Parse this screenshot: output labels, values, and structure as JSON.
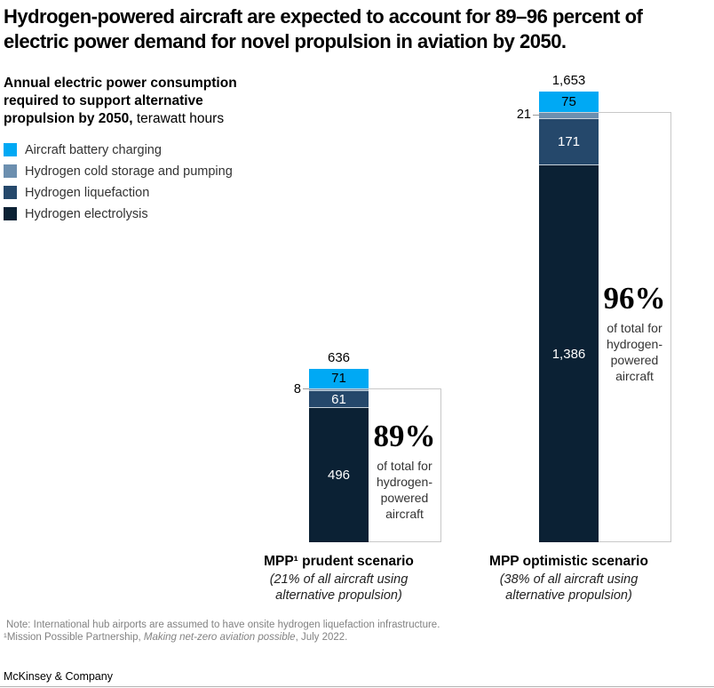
{
  "title_lines": [
    "Hydrogen-powered aircraft are expected to account for 89–96 percent of",
    "electric power demand for novel propulsion in aviation by 2050."
  ],
  "subtitle": {
    "bold": "Annual electric power consumption required to support alternative propulsion by 2050,",
    "unit": " terawatt hours"
  },
  "legend": [
    {
      "label": "Aircraft battery charging",
      "color": "#00A9F4"
    },
    {
      "label": "Hydrogen cold storage and pumping",
      "color": "#6C8FAF"
    },
    {
      "label": "Hydrogen liquefaction",
      "color": "#25486B"
    },
    {
      "label": "Hydrogen electrolysis",
      "color": "#0B2134"
    }
  ],
  "chart_data": {
    "type": "bar",
    "stacked": true,
    "unit": "terawatt hours",
    "baseline_value": 0,
    "categories": [
      {
        "name": "MPP¹ prudent scenario",
        "sub1": "(21% of all aircraft using",
        "sub2": "alternative propulsion)"
      },
      {
        "name": "MPP optimistic scenario",
        "sub1": "(38% of all aircraft using",
        "sub2": "alternative propulsion)"
      }
    ],
    "series": [
      {
        "name": "Aircraft battery charging",
        "values": [
          71,
          75
        ],
        "labels": [
          "71",
          "75"
        ]
      },
      {
        "name": "Hydrogen cold storage and pumping",
        "values": [
          8,
          21
        ],
        "labels": [
          "8",
          "21"
        ]
      },
      {
        "name": "Hydrogen liquefaction",
        "values": [
          61,
          171
        ],
        "labels": [
          "61",
          "171"
        ]
      },
      {
        "name": "Hydrogen electrolysis",
        "values": [
          496,
          1386
        ],
        "labels": [
          "496",
          "1,386"
        ]
      }
    ],
    "totals": [
      "636",
      "1,653"
    ],
    "annotations": [
      {
        "pct": "89%",
        "caption": "of total for hydrogen-powered aircraft"
      },
      {
        "pct": "96%",
        "caption": "of total for hydrogen-powered aircraft"
      }
    ]
  },
  "footnotes": {
    "note": "Note: International hub airports are assumed to have onsite hydrogen liquefaction infrastructure.",
    "ref_prefix": "¹Mission Possible Partnership, ",
    "ref_title": "Making net-zero aviation possible",
    "ref_suffix": ", July 2022."
  },
  "brand": "McKinsey & Company"
}
